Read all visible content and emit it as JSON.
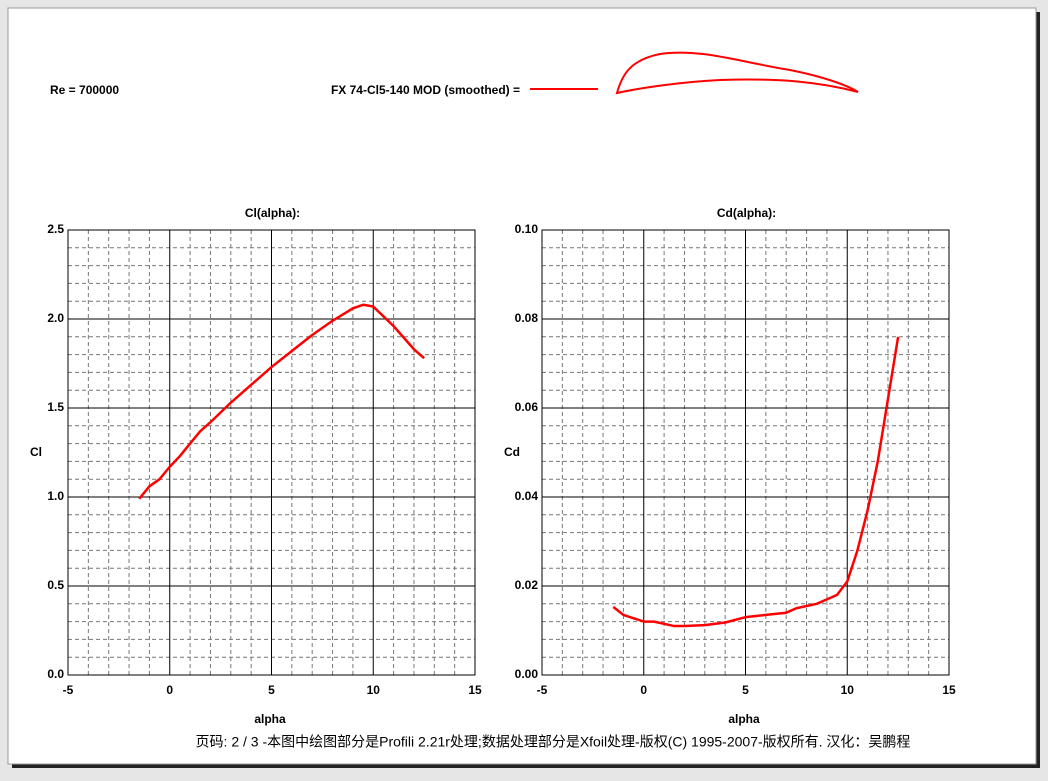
{
  "header": {
    "reynolds": "Re = 700000",
    "airfoil": "FX 74-Cl5-140 MOD  (smoothed) ="
  },
  "chart_data": [
    {
      "type": "line",
      "title": "Cl(alpha):",
      "x_label": "alpha",
      "y_label": "Cl",
      "color": "#ff0000",
      "grid": true,
      "x": [
        -1.5,
        -1,
        -0.5,
        0,
        0.5,
        1,
        1.5,
        2,
        3,
        4,
        5,
        6,
        7,
        8,
        9,
        9.5,
        10,
        11,
        12,
        12.5
      ],
      "values": [
        0.99,
        1.06,
        1.1,
        1.17,
        1.23,
        1.3,
        1.37,
        1.42,
        1.53,
        1.63,
        1.73,
        1.82,
        1.91,
        1.99,
        2.06,
        2.08,
        2.07,
        1.96,
        1.83,
        1.78
      ],
      "xlim": [
        -5,
        15
      ],
      "xticks": [
        -5,
        0,
        5,
        10,
        15
      ],
      "ylim": [
        0,
        2.5
      ],
      "yticks": [
        {
          "value": 0,
          "label": "0.0"
        },
        0.5,
        {
          "value": 1,
          "label": "1.0"
        },
        1.5,
        {
          "value": 2,
          "label": "2.0"
        },
        2.5
      ]
    },
    {
      "type": "line",
      "title": "Cd(alpha):",
      "x_label": "alpha",
      "y_label": "Cd",
      "color": "#ff0000",
      "grid": true,
      "x": [
        -1.5,
        -1,
        0,
        0.5,
        1,
        1.5,
        2,
        3,
        4,
        5,
        6,
        7,
        7.5,
        8,
        8.5,
        9,
        9.5,
        10,
        10.5,
        11,
        11.5,
        12,
        12.5
      ],
      "values": [
        0.0153,
        0.0135,
        0.012,
        0.012,
        0.0115,
        0.011,
        0.011,
        0.0112,
        0.0118,
        0.013,
        0.0135,
        0.014,
        0.015,
        0.0155,
        0.016,
        0.017,
        0.018,
        0.021,
        0.028,
        0.037,
        0.048,
        0.062,
        0.076
      ],
      "xlim": [
        -5,
        15
      ],
      "xticks": [
        -5,
        0,
        5,
        10,
        15
      ],
      "ylim": [
        0,
        0.1
      ],
      "yticks": [
        {
          "value": 0,
          "label": "0.00"
        },
        {
          "value": 0.02,
          "label": "0.02"
        },
        {
          "value": 0.04,
          "label": "0.04"
        },
        {
          "value": 0.06,
          "label": "0.06"
        },
        {
          "value": 0.08,
          "label": "0.08"
        },
        {
          "value": 0.1,
          "label": "0.10"
        }
      ]
    }
  ],
  "footer": "页码: 2 / 3 -本图中绘图部分是Profili 2.21r处理;数据处理部分是Xfoil处理-版权(C) 1995-2007-版权所有. 汉化：吴鹏程"
}
